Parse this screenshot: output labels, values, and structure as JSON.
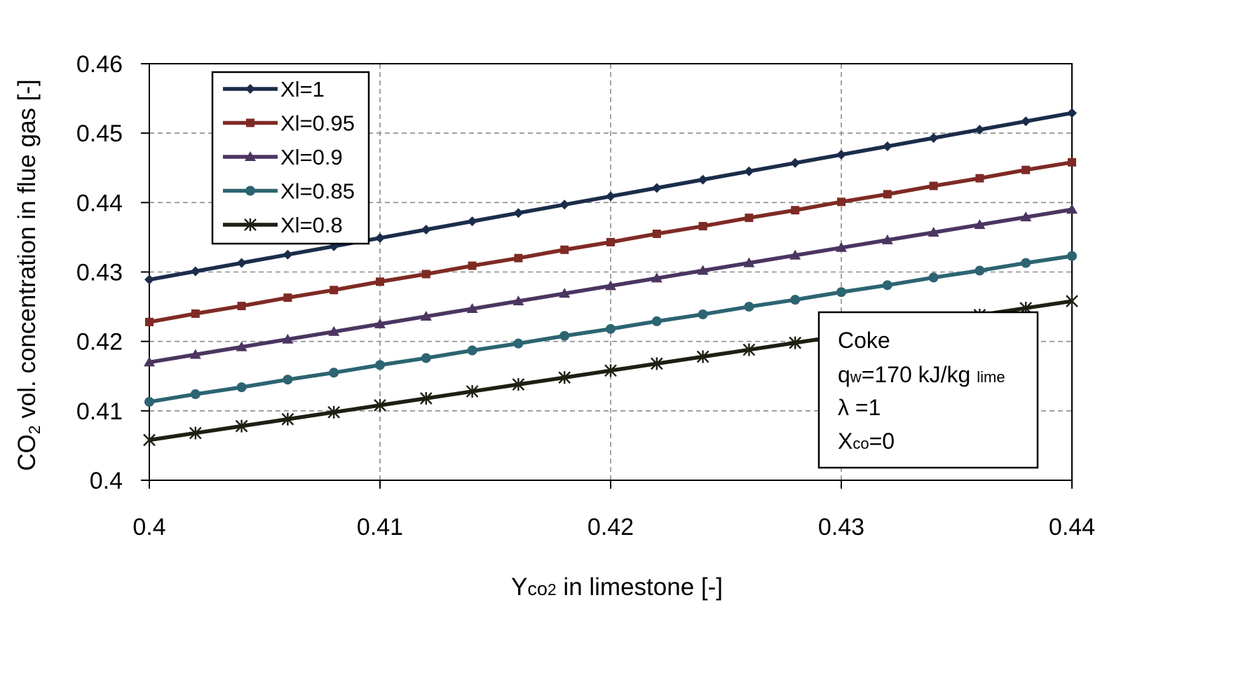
{
  "chart_data": {
    "type": "line",
    "xlabel": {
      "main": "Y",
      "sub": "co",
      "subsub": "2",
      "rest": " in limestone  [-]"
    },
    "ylabel": {
      "main": "CO",
      "sub": "2",
      "rest": " vol. concentration in flue gas [-]"
    },
    "xlim": [
      0.4,
      0.44
    ],
    "ylim": [
      0.4,
      0.46
    ],
    "x_ticks": [
      "0.4",
      "0.41",
      "0.42",
      "0.43",
      "0.44"
    ],
    "y_ticks": [
      "0.4",
      "0.41",
      "0.42",
      "0.43",
      "0.44",
      "0.45",
      "0.46"
    ],
    "grid": true,
    "legend_position": "top-left",
    "x": [
      0.4,
      0.402,
      0.404,
      0.406,
      0.408,
      0.41,
      0.412,
      0.414,
      0.416,
      0.418,
      0.42,
      0.422,
      0.424,
      0.426,
      0.428,
      0.43,
      0.432,
      0.434,
      0.436,
      0.438,
      0.44
    ],
    "series": [
      {
        "name": "Xl=1",
        "color": "#1b2c4a",
        "marker": "diamond",
        "values": [
          0.4289,
          0.4301,
          0.4313,
          0.4325,
          0.4337,
          0.4349,
          0.4361,
          0.4373,
          0.4385,
          0.4397,
          0.4409,
          0.4421,
          0.4433,
          0.4445,
          0.4457,
          0.4469,
          0.4481,
          0.4493,
          0.4505,
          0.4517,
          0.4529
        ]
      },
      {
        "name": "Xl=0.95",
        "color": "#7f2a24",
        "marker": "square",
        "values": [
          0.4228,
          0.424,
          0.4251,
          0.4263,
          0.4274,
          0.4286,
          0.4297,
          0.4309,
          0.432,
          0.4332,
          0.4343,
          0.4355,
          0.4366,
          0.4378,
          0.4389,
          0.4401,
          0.4412,
          0.4424,
          0.4435,
          0.4447,
          0.4458
        ]
      },
      {
        "name": "Xl=0.9",
        "color": "#4b3560",
        "marker": "triangle",
        "values": [
          0.417,
          0.4181,
          0.4192,
          0.4203,
          0.4214,
          0.4225,
          0.4236,
          0.4247,
          0.4258,
          0.4269,
          0.428,
          0.4291,
          0.4302,
          0.4313,
          0.4324,
          0.4335,
          0.4346,
          0.4357,
          0.4368,
          0.4379,
          0.439
        ]
      },
      {
        "name": "Xl=0.85",
        "color": "#2c6472",
        "marker": "circle",
        "values": [
          0.4113,
          0.4124,
          0.4134,
          0.4145,
          0.4155,
          0.4166,
          0.4176,
          0.4187,
          0.4197,
          0.4208,
          0.4218,
          0.4229,
          0.4239,
          0.425,
          0.426,
          0.4271,
          0.4281,
          0.4292,
          0.4302,
          0.4313,
          0.4323
        ]
      },
      {
        "name": "Xl=0.8",
        "color": "#1e1e12",
        "marker": "asterisk",
        "values": [
          0.4058,
          0.4068,
          0.4078,
          0.4088,
          0.4098,
          0.4108,
          0.4118,
          0.4128,
          0.4138,
          0.4148,
          0.4158,
          0.4168,
          0.4178,
          0.4188,
          0.4198,
          0.4208,
          0.4218,
          0.4228,
          0.4238,
          0.4248,
          0.4258
        ]
      }
    ],
    "annotation": {
      "lines": [
        {
          "text": "Coke",
          "sub": ""
        },
        {
          "text": "q",
          "sub": "w",
          "rest": "=170 kJ/kg ",
          "sub2": "lime"
        },
        {
          "text": "λ =1",
          "sub": ""
        },
        {
          "text": "X",
          "sub": "co",
          "rest": "=0"
        }
      ]
    }
  }
}
